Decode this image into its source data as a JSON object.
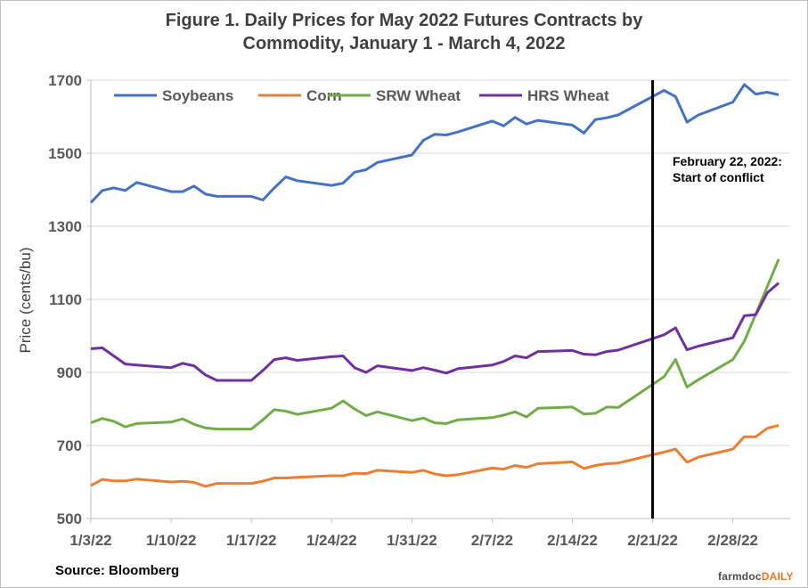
{
  "chart_data": {
    "type": "line",
    "title_line1": "Figure  1. Daily Prices for May 2022 Futures Contracts by",
    "title_line2": "Commodity,  January 1 - March  4, 2022",
    "xlabel": "",
    "ylabel": "Price (cents/bu)",
    "ylim": [
      500,
      1700
    ],
    "yticks": [
      "500",
      "700",
      "900",
      "1100",
      "1300",
      "1500",
      "1700"
    ],
    "ytick_values": [
      500,
      700,
      900,
      1100,
      1300,
      1500,
      1700
    ],
    "xticks": [
      "1/3/22",
      "1/10/22",
      "1/17/22",
      "1/24/22",
      "1/31/22",
      "2/7/22",
      "2/14/22",
      "2/21/22",
      "2/28/22"
    ],
    "xtick_days": [
      0,
      7,
      14,
      21,
      28,
      35,
      42,
      49,
      56
    ],
    "xlim_days": [
      0,
      61
    ],
    "grid": "horizontal",
    "legend_position": "top-left",
    "vline": {
      "day": 49,
      "label_line1": "February 22, 2022:",
      "label_line2": "Start of conflict"
    },
    "x": [
      0,
      1,
      2,
      3,
      4,
      7,
      8,
      9,
      10,
      11,
      14,
      15,
      16,
      17,
      18,
      21,
      22,
      23,
      24,
      25,
      28,
      29,
      30,
      31,
      32,
      35,
      36,
      37,
      38,
      39,
      42,
      43,
      44,
      45,
      46,
      50,
      51,
      52,
      53,
      56,
      57,
      58,
      59,
      60
    ],
    "series": [
      {
        "name": "Soybeans",
        "color": "#4472c4",
        "values": [
          1365,
          1398,
          1405,
          1398,
          1420,
          1395,
          1395,
          1410,
          1388,
          1382,
          1382,
          1372,
          1405,
          1435,
          1425,
          1412,
          1418,
          1448,
          1455,
          1475,
          1495,
          1535,
          1552,
          1550,
          1558,
          1588,
          1575,
          1598,
          1580,
          1590,
          1577,
          1555,
          1592,
          1597,
          1605,
          1672,
          1655,
          1585,
          1605,
          1640,
          1688,
          1662,
          1667,
          1660
        ]
      },
      {
        "name": "Corn",
        "color": "#ed7d31",
        "values": [
          590,
          607,
          603,
          603,
          608,
          600,
          602,
          599,
          588,
          596,
          596,
          602,
          611,
          611,
          613,
          617,
          617,
          624,
          623,
          632,
          626,
          632,
          622,
          617,
          620,
          638,
          635,
          645,
          640,
          650,
          655,
          637,
          645,
          650,
          652,
          682,
          690,
          654,
          668,
          690,
          724,
          724,
          747,
          755
        ]
      },
      {
        "name": "SRW Wheat",
        "color": "#70ad47",
        "values": [
          762,
          774,
          766,
          751,
          760,
          764,
          773,
          758,
          748,
          745,
          745,
          770,
          798,
          794,
          785,
          802,
          822,
          800,
          782,
          792,
          768,
          775,
          762,
          760,
          770,
          776,
          783,
          792,
          778,
          802,
          805,
          786,
          788,
          805,
          804,
          888,
          935,
          860,
          880,
          935,
          985,
          1060,
          1135,
          1210
        ]
      },
      {
        "name": "HRS Wheat",
        "color": "#7030a0",
        "values": [
          965,
          967,
          945,
          923,
          920,
          913,
          925,
          918,
          893,
          878,
          878,
          905,
          935,
          940,
          933,
          943,
          945,
          913,
          900,
          918,
          905,
          913,
          906,
          898,
          910,
          920,
          930,
          945,
          940,
          957,
          960,
          950,
          948,
          957,
          961,
          1003,
          1022,
          962,
          972,
          995,
          1055,
          1058,
          1118,
          1145
        ]
      }
    ]
  },
  "footer": {
    "source": "Source: Bloomberg",
    "brand_main": "farmdoc",
    "brand_accent": "DAILY"
  }
}
